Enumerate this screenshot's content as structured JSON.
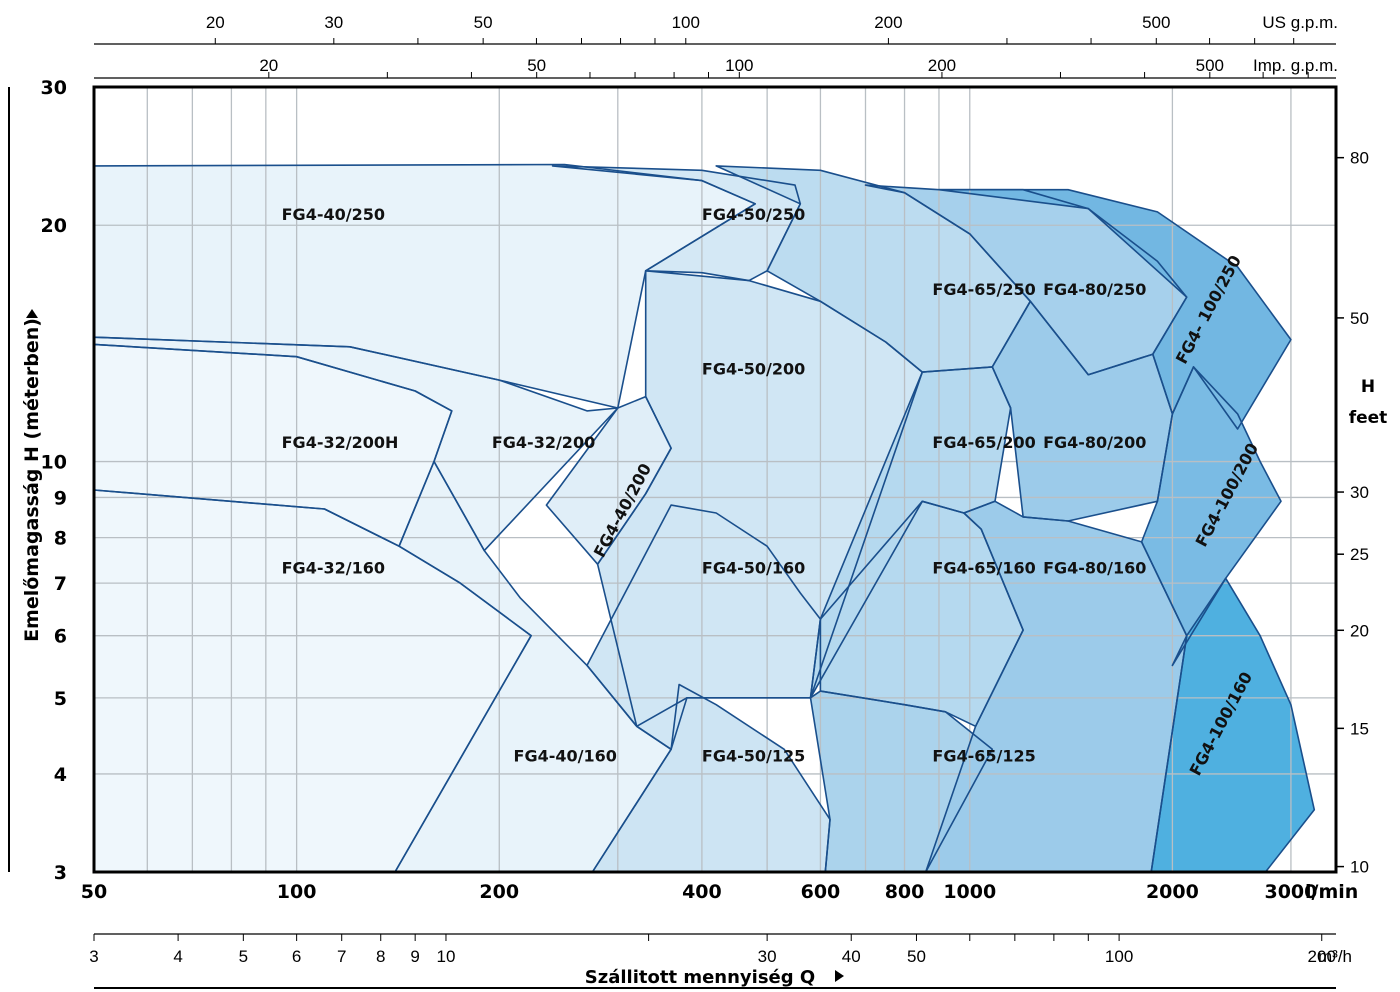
{
  "chart_data": {
    "type": "area",
    "title": "",
    "xlabel": "Szállitott mennyiség Q",
    "ylabel": "Emelőmagasság H (méterben)",
    "xscale": "log",
    "yscale": "log",
    "xlim": [
      50,
      3500
    ],
    "ylim": [
      3,
      30
    ],
    "x_unit": "l/min",
    "grid": true,
    "x_ticks": [
      50,
      100,
      200,
      400,
      600,
      800,
      1000,
      2000,
      3000
    ],
    "y_ticks": [
      3,
      4,
      5,
      6,
      7,
      8,
      9,
      10,
      20,
      30
    ],
    "axes": {
      "us_gpm": {
        "label": "US g.p.m.",
        "ticks": [
          20,
          30,
          50,
          100,
          200,
          500
        ],
        "label_text": [
          "20",
          "30",
          "50",
          "100",
          "200",
          "500"
        ]
      },
      "imp_gpm": {
        "label": "Imp. g.p.m.",
        "ticks": [
          20,
          50,
          100,
          200,
          500
        ],
        "label_text": [
          "20",
          "50",
          "100",
          "200",
          "500"
        ]
      },
      "m3h": {
        "label": "m³/h",
        "ticks": [
          3,
          4,
          5,
          6,
          7,
          8,
          9,
          10,
          30,
          40,
          50,
          100,
          200
        ],
        "label_text": [
          "3",
          "4",
          "5",
          "6",
          "7",
          "8",
          "9",
          "10",
          "30",
          "40",
          "50",
          "100",
          "200"
        ]
      },
      "feet": {
        "label": "H feet",
        "label_line1": "H",
        "label_line2": "feet",
        "ticks": [
          10,
          15,
          20,
          25,
          30,
          50,
          80
        ],
        "label_text": [
          "10",
          "15",
          "20",
          "25",
          "30",
          "50",
          "80"
        ]
      },
      "x_unit_label": "l/min",
      "y_tick_text": [
        "3",
        "4",
        "5",
        "6",
        "7",
        "8",
        "9",
        "10",
        "20",
        "30"
      ],
      "x_tick_text": [
        "50",
        "100",
        "200",
        "400",
        "600",
        "800",
        "1000",
        "2000",
        "3000"
      ]
    },
    "regions": [
      {
        "name": "FG4-40/250",
        "color": "#e8f3fa",
        "label": {
          "text": "FG4-40/250",
          "x": 95,
          "y": 20.3,
          "rot": 0
        },
        "points": [
          [
            50,
            23.8
          ],
          [
            250,
            23.9
          ],
          [
            400,
            22.8
          ],
          [
            480,
            21.3
          ],
          [
            330,
            17.5
          ],
          [
            300,
            11.7
          ],
          [
            200,
            12.7
          ],
          [
            120,
            14.0
          ],
          [
            50,
            14.4
          ]
        ]
      },
      {
        "name": "FG4-32/200H",
        "color": "#eff7fc",
        "label": {
          "text": "FG4-32/200H",
          "x": 95,
          "y": 10.4,
          "rot": 0
        },
        "points": [
          [
            50,
            14.1
          ],
          [
            100,
            13.6
          ],
          [
            150,
            12.3
          ],
          [
            170,
            11.6
          ],
          [
            160,
            10.0
          ],
          [
            142,
            7.8
          ],
          [
            110,
            8.7
          ],
          [
            50,
            9.2
          ]
        ]
      },
      {
        "name": "FG4-32/200",
        "color": "#e8f3fa",
        "label": {
          "text": "FG4-32/200",
          "x": 195,
          "y": 10.4,
          "rot": 0
        },
        "points": [
          [
            50,
            14.4
          ],
          [
            120,
            14.0
          ],
          [
            200,
            12.7
          ],
          [
            270,
            11.6
          ],
          [
            300,
            11.7
          ],
          [
            190,
            7.7
          ],
          [
            160,
            10.0
          ],
          [
            170,
            11.6
          ],
          [
            150,
            12.3
          ],
          [
            100,
            13.6
          ],
          [
            50,
            14.1
          ]
        ]
      },
      {
        "name": "FG4-32/160",
        "color": "#eff7fc",
        "label": {
          "text": "FG4-32/160",
          "x": 95,
          "y": 7.2,
          "rot": 0
        },
        "points": [
          [
            50,
            9.2
          ],
          [
            110,
            8.7
          ],
          [
            142,
            7.8
          ],
          [
            175,
            7.0
          ],
          [
            223,
            6.0
          ],
          [
            140,
            3.0
          ],
          [
            50,
            3.0
          ]
        ]
      },
      {
        "name": "FG4-40/160",
        "color": "#e8f3fa",
        "label": {
          "text": "FG4-40/160",
          "x": 210,
          "y": 4.15,
          "rot": 0
        },
        "points": [
          [
            142,
            7.8
          ],
          [
            160,
            10.0
          ],
          [
            190,
            7.7
          ],
          [
            215,
            6.7
          ],
          [
            270,
            5.5
          ],
          [
            320,
            4.6
          ],
          [
            360,
            4.3
          ],
          [
            275,
            3.0
          ],
          [
            140,
            3.0
          ],
          [
            223,
            6.0
          ],
          [
            175,
            7.0
          ]
        ]
      },
      {
        "name": "FG4-40/200",
        "color": "#e0eef8",
        "label": {
          "text": "FG4-40/200",
          "x": 310,
          "y": 8.6,
          "rot": -62
        },
        "points": [
          [
            300,
            11.7
          ],
          [
            330,
            12.1
          ],
          [
            360,
            10.4
          ],
          [
            330,
            9.1
          ],
          [
            280,
            7.4
          ],
          [
            235,
            8.8
          ]
        ]
      },
      {
        "name": "FG4-50/250",
        "color": "#d4e8f5",
        "label": {
          "text": "FG4-50/250",
          "x": 400,
          "y": 20.3,
          "rot": 0
        },
        "points": [
          [
            240,
            23.8
          ],
          [
            400,
            23.5
          ],
          [
            550,
            22.5
          ],
          [
            560,
            21.3
          ],
          [
            500,
            17.5
          ],
          [
            470,
            17.0
          ],
          [
            400,
            17.4
          ],
          [
            330,
            17.5
          ],
          [
            480,
            21.3
          ],
          [
            400,
            22.8
          ]
        ]
      },
      {
        "name": "FG4-50/200",
        "color": "#d0e6f4",
        "label": {
          "text": "FG4-50/200",
          "x": 400,
          "y": 12.9,
          "rot": 0
        },
        "points": [
          [
            330,
            17.5
          ],
          [
            470,
            17.0
          ],
          [
            600,
            16.0
          ],
          [
            750,
            14.2
          ],
          [
            850,
            13.0
          ],
          [
            580,
            5.0
          ],
          [
            380,
            5.0
          ],
          [
            360,
            4.3
          ],
          [
            320,
            4.6
          ],
          [
            280,
            7.4
          ],
          [
            330,
            9.1
          ],
          [
            360,
            10.4
          ],
          [
            330,
            12.1
          ]
        ]
      },
      {
        "name": "FG4-50/160",
        "color": "#d0e6f4",
        "label": {
          "text": "FG4-50/160",
          "x": 400,
          "y": 7.2,
          "rot": 0
        },
        "points": [
          [
            360,
            8.8
          ],
          [
            420,
            8.6
          ],
          [
            500,
            7.8
          ],
          [
            560,
            6.8
          ],
          [
            600,
            6.3
          ],
          [
            580,
            5.0
          ],
          [
            380,
            5.0
          ],
          [
            320,
            4.6
          ],
          [
            270,
            5.5
          ]
        ]
      },
      {
        "name": "FG4-50/125",
        "color": "#cde4f3",
        "label": {
          "text": "FG4-50/125",
          "x": 400,
          "y": 4.15,
          "rot": 0
        },
        "points": [
          [
            370,
            5.2
          ],
          [
            420,
            4.9
          ],
          [
            530,
            4.3
          ],
          [
            620,
            3.5
          ],
          [
            610,
            3.0
          ],
          [
            275,
            3.0
          ],
          [
            360,
            4.3
          ]
        ]
      },
      {
        "name": "FG4-65/250",
        "color": "#bcdcf0",
        "label": {
          "text": "FG4-65/250",
          "x": 880,
          "y": 16.3,
          "rot": 0
        },
        "points": [
          [
            420,
            23.8
          ],
          [
            600,
            23.5
          ],
          [
            800,
            22.0
          ],
          [
            1000,
            19.5
          ],
          [
            1230,
            16.0
          ],
          [
            1080,
            13.2
          ],
          [
            850,
            13.0
          ],
          [
            750,
            14.2
          ],
          [
            600,
            16.0
          ],
          [
            500,
            17.5
          ],
          [
            560,
            21.3
          ]
        ]
      },
      {
        "name": "FG4-65/200",
        "color": "#b5d9ef",
        "label": {
          "text": "FG4-65/200",
          "x": 880,
          "y": 10.4,
          "rot": 0
        },
        "points": [
          [
            850,
            13.0
          ],
          [
            1080,
            13.2
          ],
          [
            1150,
            11.7
          ],
          [
            1090,
            8.9
          ],
          [
            980,
            8.6
          ],
          [
            850,
            8.9
          ],
          [
            580,
            5.0
          ],
          [
            600,
            6.3
          ]
        ]
      },
      {
        "name": "FG4-65/160",
        "color": "#b5d9ef",
        "label": {
          "text": "FG4-65/160",
          "x": 880,
          "y": 7.2,
          "rot": 0
        },
        "points": [
          [
            600,
            6.3
          ],
          [
            850,
            8.9
          ],
          [
            980,
            8.6
          ],
          [
            1040,
            8.2
          ],
          [
            1200,
            6.1
          ],
          [
            1020,
            4.6
          ],
          [
            920,
            4.8
          ],
          [
            800,
            4.9
          ],
          [
            600,
            5.1
          ]
        ]
      },
      {
        "name": "FG4-65/125",
        "color": "#abd3ec",
        "label": {
          "text": "FG4-65/125",
          "x": 880,
          "y": 4.15,
          "rot": 0
        },
        "points": [
          [
            580,
            5.0
          ],
          [
            600,
            5.1
          ],
          [
            800,
            4.9
          ],
          [
            920,
            4.8
          ],
          [
            1080,
            4.3
          ],
          [
            860,
            3.0
          ],
          [
            610,
            3.0
          ],
          [
            620,
            3.5
          ]
        ]
      },
      {
        "name": "FG4-80/250",
        "color": "#a6d0ec",
        "label": {
          "text": "FG4-80/250",
          "x": 1285,
          "y": 16.3,
          "rot": 0
        },
        "points": [
          [
            900,
            22.2
          ],
          [
            1200,
            22.2
          ],
          [
            1500,
            21.0
          ],
          [
            1900,
            18.0
          ],
          [
            2100,
            16.2
          ],
          [
            1870,
            13.7
          ],
          [
            1500,
            12.9
          ],
          [
            1230,
            16.0
          ],
          [
            1000,
            19.5
          ],
          [
            800,
            22.0
          ],
          [
            700,
            22.5
          ]
        ]
      },
      {
        "name": "FG4-80/200",
        "color": "#9ccbea",
        "label": {
          "text": "FG4-80/200",
          "x": 1285,
          "y": 10.4,
          "rot": 0
        },
        "points": [
          [
            1230,
            16.0
          ],
          [
            1500,
            12.9
          ],
          [
            1870,
            13.7
          ],
          [
            2000,
            11.5
          ],
          [
            1900,
            8.9
          ],
          [
            1400,
            8.4
          ],
          [
            1200,
            8.5
          ],
          [
            1150,
            11.7
          ],
          [
            1080,
            13.2
          ]
        ]
      },
      {
        "name": "FG4-80/160",
        "color": "#9ccbea",
        "label": {
          "text": "FG4-80/160",
          "x": 1285,
          "y": 7.2,
          "rot": 0
        },
        "points": [
          [
            1090,
            8.9
          ],
          [
            1200,
            8.5
          ],
          [
            1400,
            8.4
          ],
          [
            1800,
            7.9
          ],
          [
            2100,
            6.0
          ],
          [
            1860,
            3.0
          ],
          [
            860,
            3.0
          ],
          [
            1020,
            4.6
          ],
          [
            1200,
            6.1
          ],
          [
            1040,
            8.2
          ],
          [
            980,
            8.6
          ]
        ]
      },
      {
        "name": "FG4-100/250",
        "color": "#72b7e2",
        "label": {
          "text": "FG4- 100/250",
          "x": 2300,
          "y": 15.5,
          "rot": -62
        },
        "points": [
          [
            900,
            22.2
          ],
          [
            1400,
            22.2
          ],
          [
            1900,
            20.8
          ],
          [
            2500,
            17.7
          ],
          [
            3000,
            14.3
          ],
          [
            2500,
            11.0
          ],
          [
            2150,
            13.2
          ],
          [
            2000,
            11.5
          ],
          [
            1870,
            13.7
          ],
          [
            2100,
            16.2
          ],
          [
            1500,
            21.0
          ]
        ]
      },
      {
        "name": "FG4-100/200",
        "color": "#7abbe4",
        "label": {
          "text": "FG4-100/200",
          "x": 2450,
          "y": 9.0,
          "rot": -62
        },
        "points": [
          [
            2150,
            13.2
          ],
          [
            2500,
            11.5
          ],
          [
            2700,
            10.0
          ],
          [
            2900,
            8.9
          ],
          [
            2400,
            7.1
          ],
          [
            2000,
            5.5
          ],
          [
            2100,
            6.0
          ],
          [
            1800,
            7.9
          ],
          [
            1900,
            8.9
          ],
          [
            2000,
            11.5
          ]
        ]
      },
      {
        "name": "FG4-100/160",
        "color": "#4fb0e0",
        "label": {
          "text": "FG4-100/160",
          "x": 2400,
          "y": 4.6,
          "rot": -62
        },
        "points": [
          [
            2100,
            6.0
          ],
          [
            2400,
            7.1
          ],
          [
            2700,
            6.0
          ],
          [
            3000,
            4.9
          ],
          [
            3250,
            3.6
          ],
          [
            2750,
            3.0
          ],
          [
            1860,
            3.0
          ]
        ]
      }
    ]
  }
}
